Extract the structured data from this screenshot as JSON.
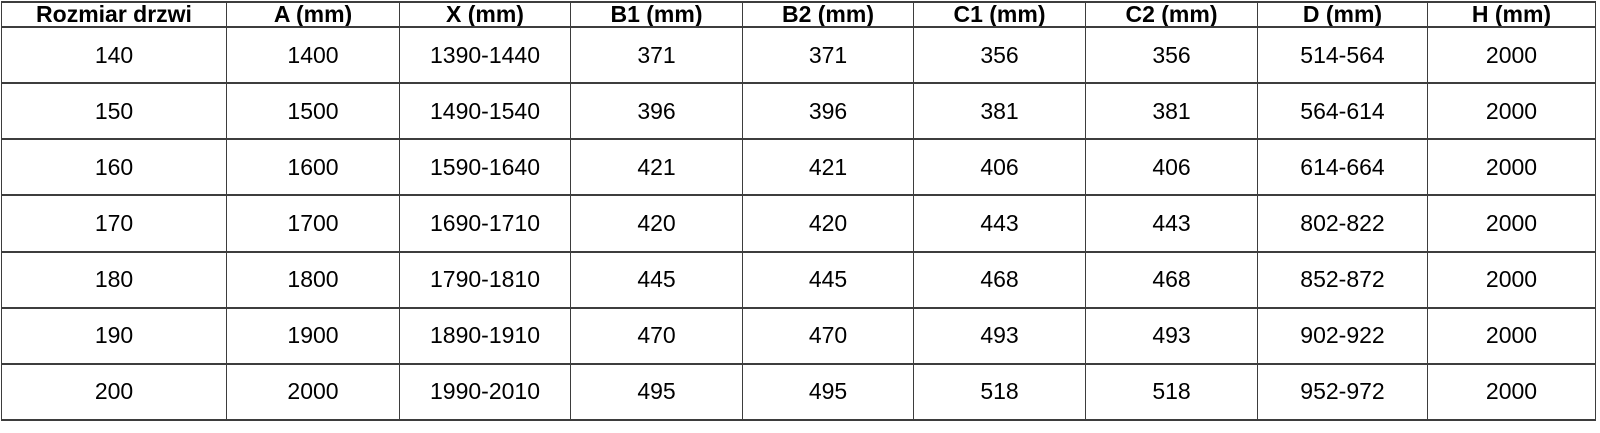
{
  "style": {
    "border_color": "#3d3d3d",
    "text_color": "#000000",
    "background_color": "#ffffff"
  },
  "chart_data": {
    "type": "table",
    "columns": [
      "Rozmiar drzwi",
      "A (mm)",
      "X (mm)",
      "B1 (mm)",
      "B2 (mm)",
      "C1 (mm)",
      "C2 (mm)",
      "D (mm)",
      "H (mm)"
    ],
    "rows": [
      [
        "140",
        "1400",
        "1390-1440",
        "371",
        "371",
        "356",
        "356",
        "514-564",
        "2000"
      ],
      [
        "150",
        "1500",
        "1490-1540",
        "396",
        "396",
        "381",
        "381",
        "564-614",
        "2000"
      ],
      [
        "160",
        "1600",
        "1590-1640",
        "421",
        "421",
        "406",
        "406",
        "614-664",
        "2000"
      ],
      [
        "170",
        "1700",
        "1690-1710",
        "420",
        "420",
        "443",
        "443",
        "802-822",
        "2000"
      ],
      [
        "180",
        "1800",
        "1790-1810",
        "445",
        "445",
        "468",
        "468",
        "852-872",
        "2000"
      ],
      [
        "190",
        "1900",
        "1890-1910",
        "470",
        "470",
        "493",
        "493",
        "902-922",
        "2000"
      ],
      [
        "200",
        "2000",
        "1990-2010",
        "495",
        "495",
        "518",
        "518",
        "952-972",
        "2000"
      ]
    ]
  }
}
